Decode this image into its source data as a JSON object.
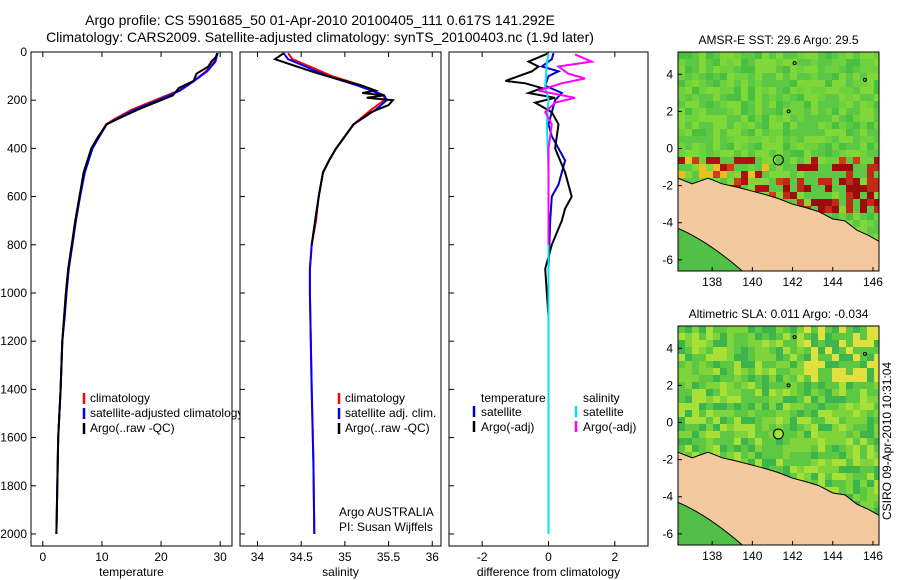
{
  "title_line1": "Argo profile: CS 5901685_50 01-Apr-2010 20100405_111 0.617S 141.292E",
  "title_line2": "Climatology: CARS2009. Satellite-adjusted climatology: synTS_20100403.nc (1.9d later)",
  "stamp": "CSIRO 09-Apr-2010 10:31:04",
  "colors": {
    "climatology": "#ff0000",
    "satellite": "#0000ff",
    "argo": "#000000",
    "diff_temp_sat": "#0000cc",
    "diff_sal_sat": "#00e5ee",
    "diff_sal_argo": "#ff00ff",
    "land": "#f5c9a0",
    "map_green": "#6fd23a"
  },
  "chart_data": [
    {
      "type": "line",
      "xlabel": "temperature",
      "xlim": [
        -2,
        32
      ],
      "ylim": [
        2050,
        0
      ],
      "xticks": [
        0,
        10,
        20,
        30
      ],
      "yticks": [
        0,
        200,
        400,
        600,
        800,
        1000,
        1200,
        1400,
        1600,
        1800,
        2000
      ],
      "legend": {
        "placement": "lower-right",
        "entries": [
          "climatology",
          "satellite-adjusted climatology",
          "Argo(..raw -QC)"
        ]
      },
      "series": [
        {
          "name": "climatology",
          "x": [
            29.5,
            29.3,
            29.0,
            27.6,
            25.5,
            23.0,
            19.0,
            15.0,
            12.0,
            10.7,
            9.5,
            8.3,
            7.0,
            6.2,
            5.5,
            4.9,
            4.3,
            3.9,
            3.6,
            3.3,
            3.0,
            2.8,
            2.6,
            2.3
          ],
          "y": [
            5,
            20,
            40,
            80,
            120,
            160,
            200,
            240,
            280,
            300,
            350,
            400,
            500,
            600,
            700,
            800,
            900,
            1000,
            1100,
            1200,
            1400,
            1500,
            1600,
            2000
          ]
        },
        {
          "name": "satellite-adjusted climatology",
          "x": [
            29.6,
            29.4,
            29.2,
            27.8,
            25.6,
            23.2,
            19.5,
            15.5,
            12.3,
            10.8,
            9.6,
            8.4,
            7.1,
            6.3,
            5.6,
            5.0,
            4.4,
            4.0,
            3.7,
            3.3,
            3.0,
            2.8,
            2.6,
            2.3
          ],
          "y": [
            5,
            20,
            40,
            80,
            120,
            160,
            200,
            240,
            280,
            300,
            350,
            400,
            500,
            600,
            700,
            800,
            900,
            1000,
            1100,
            1200,
            1400,
            1500,
            1600,
            2000
          ]
        },
        {
          "name": "Argo(..raw -QC)",
          "x": [
            29.5,
            29.3,
            28.5,
            28.0,
            26.0,
            25.5,
            23.0,
            22.0,
            19.0,
            16.0,
            12.5,
            10.8,
            9.4,
            8.2,
            6.9,
            6.2,
            5.5,
            4.9,
            4.3,
            3.9,
            3.6,
            3.3,
            3.0,
            2.8,
            2.6,
            2.3
          ],
          "y": [
            5,
            20,
            40,
            60,
            90,
            120,
            150,
            180,
            210,
            240,
            280,
            300,
            350,
            400,
            500,
            600,
            700,
            800,
            900,
            1000,
            1100,
            1200,
            1400,
            1500,
            1600,
            2000
          ]
        }
      ]
    },
    {
      "type": "line",
      "xlabel": "salinity",
      "xlim": [
        33.8,
        36.1
      ],
      "ylim": [
        2050,
        0
      ],
      "xticks": [
        34,
        34.5,
        35,
        35.5,
        36
      ],
      "legend": {
        "placement": "lower-right",
        "entries": [
          "climatology",
          "satellite adj. clim.",
          "Argo(..raw -QC)"
        ]
      },
      "annotations": [
        "Argo AUSTRALIA",
        "PI: Susan Wijffels"
      ],
      "series": [
        {
          "name": "climatology",
          "x": [
            34.35,
            34.4,
            34.6,
            34.85,
            35.2,
            35.45,
            35.45,
            35.3,
            35.1,
            35.0,
            34.9,
            34.82,
            34.75,
            34.7,
            34.67,
            34.62,
            34.6,
            34.6,
            34.61,
            34.62,
            34.64,
            34.65
          ],
          "y": [
            5,
            30,
            60,
            100,
            140,
            180,
            200,
            240,
            300,
            350,
            400,
            450,
            500,
            600,
            700,
            800,
            900,
            1000,
            1200,
            1400,
            1700,
            2000
          ]
        },
        {
          "name": "satellite adj. clim.",
          "x": [
            34.3,
            34.35,
            34.55,
            34.8,
            35.15,
            35.45,
            35.48,
            35.35,
            35.1,
            35.0,
            34.9,
            34.82,
            34.75,
            34.7,
            34.66,
            34.62,
            34.6,
            34.6,
            34.61,
            34.62,
            34.64,
            34.65
          ],
          "y": [
            5,
            30,
            60,
            100,
            140,
            180,
            200,
            240,
            300,
            350,
            400,
            450,
            500,
            600,
            700,
            800,
            900,
            1000,
            1200,
            1400,
            1700,
            2000
          ]
        },
        {
          "name": "Argo(..raw -QC)",
          "x": [
            34.3,
            34.2,
            34.45,
            34.7,
            34.9,
            35.2,
            35.35,
            35.2,
            35.45,
            35.25,
            35.55,
            35.5,
            35.3,
            35.1,
            35.0,
            34.9,
            34.82,
            34.75,
            34.7,
            34.66,
            34.62
          ],
          "y": [
            5,
            30,
            60,
            90,
            110,
            140,
            160,
            170,
            180,
            190,
            200,
            220,
            250,
            300,
            350,
            400,
            450,
            500,
            600,
            700,
            800
          ]
        }
      ]
    },
    {
      "type": "line",
      "xlabel": "difference from climatology",
      "xlim": [
        -3,
        3
      ],
      "ylim": [
        2050,
        0
      ],
      "xticks": [
        -2,
        0,
        2
      ],
      "legend": {
        "placement": "lower-right",
        "entries": [
          "temperature",
          "satellite",
          "Argo(-adj)",
          "salinity",
          "satellite",
          "Argo(-adj)"
        ]
      },
      "series": [
        {
          "name": "temperature satellite",
          "x": [
            0.15,
            0.1,
            -0.2,
            0.3,
            0.0,
            -0.1,
            0.4,
            0.2,
            0.1,
            0.0,
            0.1,
            0.5,
            0.3,
            0.1,
            0.05,
            0.0,
            0.0,
            0.0
          ],
          "y": [
            5,
            30,
            60,
            80,
            100,
            140,
            170,
            200,
            250,
            300,
            350,
            450,
            550,
            600,
            700,
            900,
            1200,
            1600
          ]
        },
        {
          "name": "temperature Argo(-adj)",
          "x": [
            0.0,
            -0.6,
            -0.3,
            -0.5,
            -1.3,
            -0.7,
            -0.2,
            -0.6,
            0.2,
            -0.4,
            0.1,
            0.3,
            0.2,
            0.5,
            0.7,
            0.5,
            0.4,
            0.1,
            -0.1,
            0.0,
            0.0
          ],
          "y": [
            5,
            40,
            60,
            80,
            120,
            130,
            150,
            170,
            190,
            210,
            250,
            300,
            400,
            500,
            600,
            650,
            700,
            800,
            900,
            1100,
            1300
          ]
        },
        {
          "name": "salinity satellite",
          "x": [
            0.0,
            -0.05,
            -0.1,
            0.0,
            -0.05,
            0.0,
            0.0,
            0.0
          ],
          "y": [
            5,
            50,
            150,
            200,
            300,
            500,
            1000,
            2000
          ]
        },
        {
          "name": "salinity Argo(-adj)",
          "x": [
            0.8,
            1.3,
            0.3,
            0.6,
            1.1,
            0.4,
            -0.3,
            0.8,
            0.2,
            -0.1,
            0.1,
            0.0,
            0.0
          ],
          "y": [
            10,
            40,
            60,
            90,
            110,
            130,
            160,
            190,
            210,
            250,
            300,
            400,
            800
          ]
        }
      ]
    },
    {
      "type": "heatmap",
      "title": "AMSR-E SST: 29.6 Argo: 29.5",
      "xlim": [
        136.3,
        146.3
      ],
      "ylim": [
        -6.6,
        5.2
      ],
      "xticks": [
        138,
        140,
        142,
        144,
        146
      ],
      "yticks": [
        -6,
        -4,
        -2,
        0,
        2,
        4
      ],
      "marker": {
        "lon": 141.292,
        "lat": -0.617
      }
    },
    {
      "type": "heatmap",
      "title": "Altimetric SLA: 0.011 Argo: -0.034",
      "xlim": [
        136.3,
        146.3
      ],
      "ylim": [
        -6.6,
        5.2
      ],
      "xticks": [
        138,
        140,
        142,
        144,
        146
      ],
      "yticks": [
        -6,
        -4,
        -2,
        0,
        2,
        4
      ],
      "marker": {
        "lon": 141.292,
        "lat": -0.617
      }
    }
  ]
}
